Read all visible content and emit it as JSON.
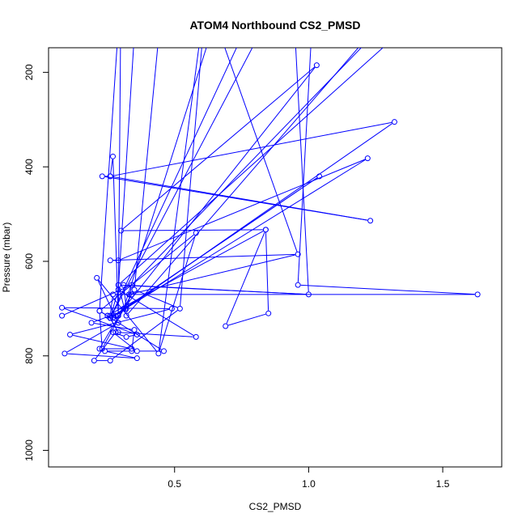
{
  "chart_data": {
    "type": "line",
    "title": "ATOM4 Northbound CS2_PMSD",
    "xlabel": "CS2_PMSD",
    "ylabel": "Pressure (mbar)",
    "xlim": [
      0.03,
      1.72
    ],
    "ylim": [
      1035,
      148
    ],
    "y_reversed": true,
    "x_ticks": [
      0.5,
      1.0,
      1.5
    ],
    "x_tick_labels": [
      "0.5",
      "1.0",
      "1.5"
    ],
    "y_ticks": [
      200,
      400,
      600,
      800,
      1000
    ],
    "y_tick_labels": [
      "200",
      "400",
      "600",
      "800",
      "1000"
    ],
    "grid": false,
    "color": "#0000ff",
    "series": [
      {
        "points": [
          [
            0.96,
            650
          ],
          [
            1.63,
            670
          ],
          [
            0.27,
            670
          ],
          [
            0.26,
            715
          ],
          [
            0.19,
            730
          ],
          [
            0.35,
            745
          ],
          [
            0.34,
            790
          ],
          [
            0.24,
            790
          ],
          [
            0.36,
            805
          ],
          [
            0.09,
            795
          ],
          [
            0.29,
            730
          ],
          [
            0.21,
            635
          ],
          [
            0.44,
            795
          ],
          [
            0.58,
            540
          ],
          [
            0.22,
            705
          ],
          [
            0.46,
            790
          ],
          [
            0.36,
            790
          ],
          [
            0.27,
            750
          ],
          [
            0.32,
            760
          ],
          [
            0.36,
            755
          ],
          [
            0.08,
            698
          ],
          [
            0.49,
            700
          ],
          [
            0.11,
            755
          ],
          [
            0.34,
            785
          ],
          [
            0.22,
            785
          ],
          [
            0.34,
            670
          ],
          [
            0.23,
            785
          ],
          [
            0.22,
            705
          ],
          [
            0.25,
            715
          ],
          [
            0.28,
            715
          ],
          [
            0.29,
            715
          ],
          [
            0.27,
            720
          ],
          [
            0.26,
            720
          ],
          [
            0.29,
            750
          ],
          [
            0.26,
            720
          ],
          [
            0.29,
            660
          ],
          [
            0.58,
            760
          ],
          [
            0.28,
            750
          ],
          [
            0.2,
            810
          ],
          [
            0.26,
            810
          ],
          [
            0.52,
            700
          ],
          [
            0.35,
            660
          ],
          [
            0.33,
            670
          ],
          [
            0.96,
            585
          ],
          [
            0.26,
            598
          ],
          [
            0.29,
            598
          ],
          [
            1.22,
            382
          ],
          [
            0.26,
            720
          ],
          [
            1.04,
            420
          ],
          [
            0.26,
            720
          ],
          [
            0.28,
            715
          ],
          [
            1.32,
            305
          ],
          [
            0.26,
            420
          ],
          [
            0.23,
            420
          ],
          [
            1.23,
            514
          ],
          [
            0.26,
            420
          ],
          [
            0.27,
            378
          ],
          [
            0.29,
            715
          ],
          [
            0.25,
            715
          ],
          [
            0.84,
            533
          ],
          [
            0.85,
            710
          ],
          [
            0.69,
            737
          ],
          [
            0.84,
            533
          ],
          [
            0.3,
            535
          ],
          [
            1.03,
            185
          ],
          [
            0.31,
            700
          ],
          [
            0.32,
            700
          ],
          [
            0.31,
            650
          ],
          [
            1.0,
            670
          ],
          [
            0.29,
            650
          ],
          [
            0.32,
            715
          ],
          [
            0.34,
            650
          ],
          [
            0.08,
            715
          ]
        ]
      }
    ],
    "offscreen_segments": [
      [
        [
          0.29,
          660
        ],
        [
          0.36,
          30
        ]
      ],
      [
        [
          0.22,
          705
        ],
        [
          0.3,
          20
        ]
      ],
      [
        [
          0.29,
          715
        ],
        [
          0.3,
          20
        ]
      ],
      [
        [
          0.35,
          660
        ],
        [
          0.45,
          70
        ]
      ],
      [
        [
          0.26,
          720
        ],
        [
          0.82,
          40
        ]
      ],
      [
        [
          0.31,
          700
        ],
        [
          0.69,
          20
        ]
      ],
      [
        [
          0.26,
          720
        ],
        [
          0.89,
          40
        ]
      ],
      [
        [
          0.32,
          715
        ],
        [
          1.35,
          40
        ]
      ],
      [
        [
          0.29,
          650
        ],
        [
          1.43,
          70
        ]
      ],
      [
        [
          0.34,
          650
        ],
        [
          1.38,
          40
        ]
      ],
      [
        [
          0.52,
          700
        ],
        [
          0.62,
          20
        ]
      ],
      [
        [
          0.44,
          795
        ],
        [
          0.62,
          20
        ]
      ],
      [
        [
          0.96,
          650
        ],
        [
          1.02,
          20
        ]
      ],
      [
        [
          1.0,
          670
        ],
        [
          0.94,
          20
        ]
      ],
      [
        [
          0.96,
          585
        ],
        [
          0.62,
          40
        ]
      ]
    ]
  }
}
